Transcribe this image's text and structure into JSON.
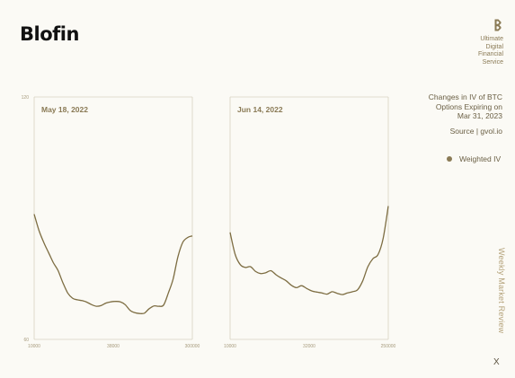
{
  "brand": {
    "name": "Blofin",
    "tagline": "Ultimate\nDigital\nFinancial\nService"
  },
  "side_label": "Weekly Market Review",
  "close_label": "X",
  "colors": {
    "line": "#7d6d42",
    "frame": "#d9d2c0",
    "accent": "#8a7a55"
  },
  "chart_data": {
    "type": "line",
    "title": "Changes in IV of BTC\nOptions Expiring on\nMar 31, 2023",
    "source": "Source | gvol.io",
    "legend": [
      "Weighted IV"
    ],
    "legend_position": "right",
    "ylim": [
      60,
      120
    ],
    "y_ticks": [
      120,
      60
    ],
    "grid": false,
    "panels": [
      {
        "title": "May 18, 2022",
        "x_ticks": [
          "10000",
          "38000",
          "300000"
        ],
        "series": [
          {
            "name": "Weighted IV",
            "values": [
              91,
              87,
              84,
              81.5,
              79,
              77,
              74,
              71.5,
              70.2,
              69.8,
              69.6,
              69.2,
              68.6,
              68.2,
              68.4,
              69,
              69.3,
              69.4,
              69.3,
              68.6,
              67.2,
              66.6,
              66.4,
              66.5,
              67.6,
              68.3,
              68.2,
              68.5,
              71.5,
              75,
              80.5,
              84,
              85.2,
              85.6
            ]
          }
        ]
      },
      {
        "title": "Jun 14, 2022",
        "x_ticks": [
          "10000",
          "32000",
          "250000"
        ],
        "series": [
          {
            "name": "Weighted IV",
            "values": [
              86.5,
              81,
              78.5,
              77.8,
              78,
              76.8,
              76.3,
              76.5,
              77,
              76,
              75.2,
              74.5,
              73.4,
              72.8,
              73.3,
              72.6,
              72,
              71.7,
              71.5,
              71.2,
              71.8,
              71.4,
              71.1,
              71.5,
              71.8,
              72.3,
              74.5,
              78,
              80,
              81,
              85,
              93
            ]
          }
        ]
      }
    ]
  }
}
